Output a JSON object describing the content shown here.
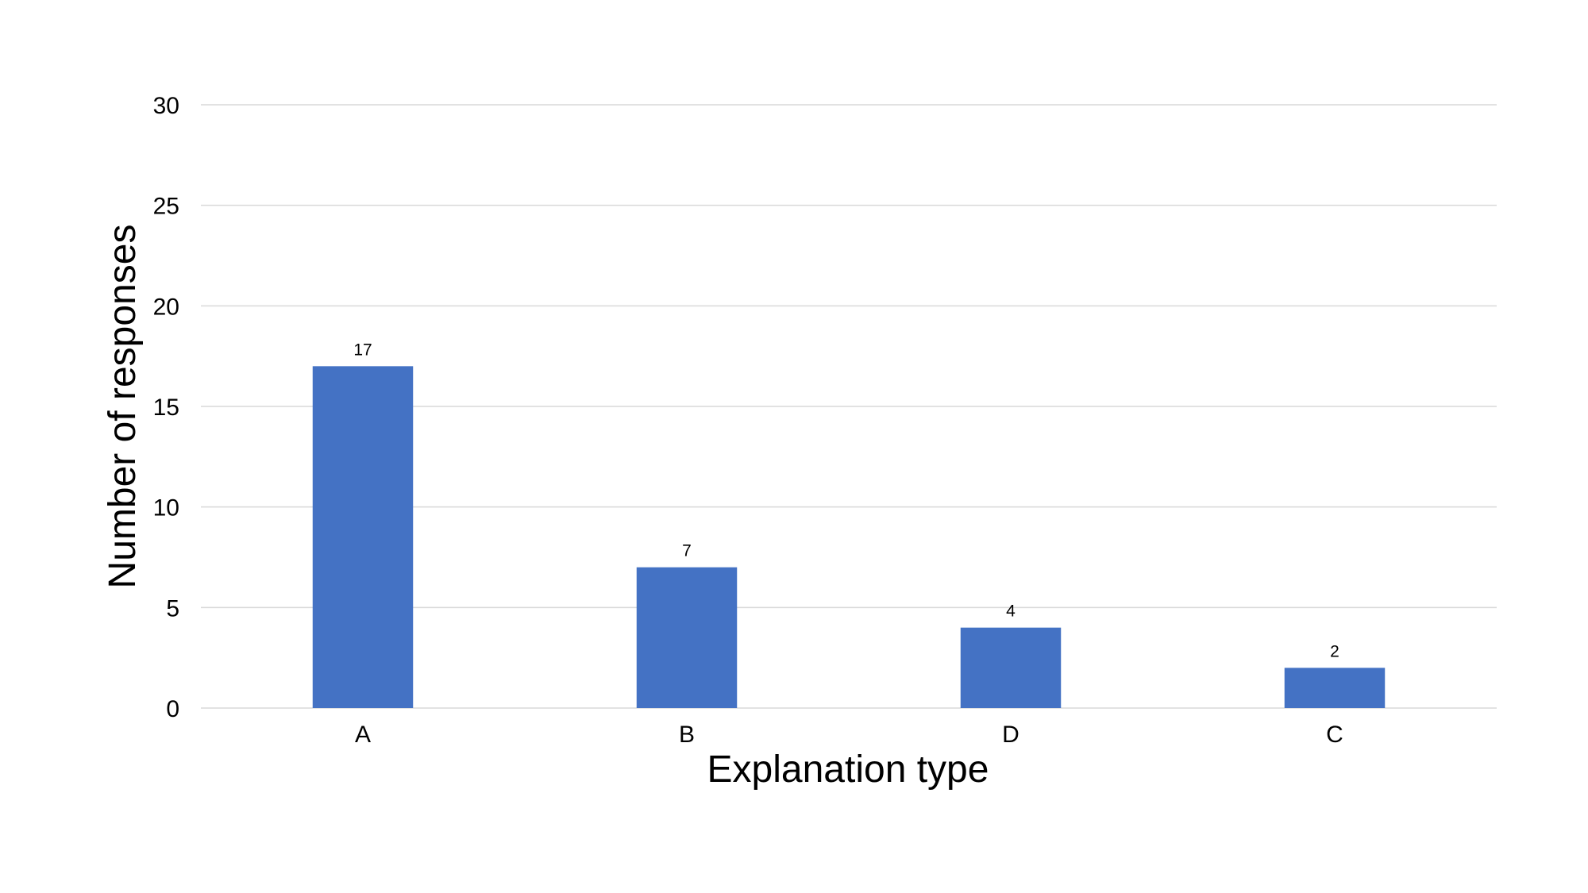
{
  "chart_data": {
    "type": "bar",
    "title": "",
    "xlabel": "Explanation type",
    "ylabel": "Number of responses",
    "categories": [
      "A",
      "B",
      "D",
      "C"
    ],
    "values": [
      17,
      7,
      4,
      2
    ],
    "data_labels": [
      "17",
      "7",
      "4",
      "2"
    ],
    "ylim": [
      0,
      30
    ],
    "yticks": [
      0,
      5,
      10,
      15,
      20,
      25,
      30
    ],
    "ytick_labels": [
      "0",
      "5",
      "10",
      "15",
      "20",
      "25",
      "30"
    ],
    "grid": true,
    "legend": "none",
    "bar_color": "#4472C4",
    "grid_color": "#d9d9d9"
  }
}
